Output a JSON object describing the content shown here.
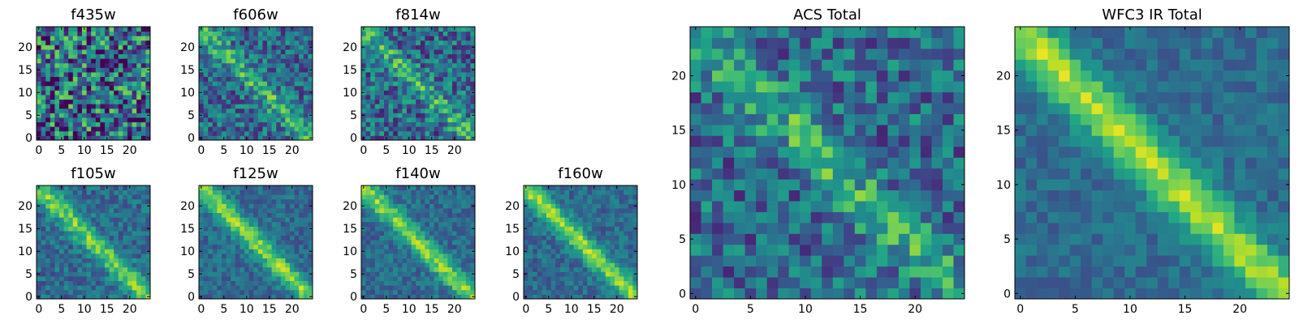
{
  "chart_data": [
    {
      "type": "heatmap",
      "title": "f435w",
      "size": 25,
      "diag_strength": 0.0,
      "noise": 1.0,
      "seed": 11,
      "xticks": [
        "0",
        "5",
        "10",
        "15",
        "20"
      ],
      "yticks": [
        "0",
        "5",
        "10",
        "15",
        "20"
      ],
      "colormap": "viridis"
    },
    {
      "type": "heatmap",
      "title": "f606w",
      "size": 25,
      "diag_strength": 0.55,
      "noise": 0.55,
      "seed": 23,
      "xticks": [
        "0",
        "5",
        "10",
        "15",
        "20"
      ],
      "yticks": [
        "0",
        "5",
        "10",
        "15",
        "20"
      ],
      "colormap": "viridis"
    },
    {
      "type": "heatmap",
      "title": "f814w",
      "size": 25,
      "diag_strength": 0.5,
      "noise": 0.6,
      "seed": 37,
      "xticks": [
        "0",
        "5",
        "10",
        "15",
        "20"
      ],
      "yticks": [
        "0",
        "5",
        "10",
        "15",
        "20"
      ],
      "colormap": "viridis"
    },
    {
      "type": "heatmap",
      "title": "f105w",
      "size": 25,
      "diag_strength": 0.8,
      "noise": 0.35,
      "seed": 41,
      "xticks": [
        "0",
        "5",
        "10",
        "15",
        "20"
      ],
      "yticks": [
        "0",
        "5",
        "10",
        "15",
        "20"
      ],
      "colormap": "viridis"
    },
    {
      "type": "heatmap",
      "title": "f125w",
      "size": 25,
      "diag_strength": 0.85,
      "noise": 0.3,
      "seed": 53,
      "xticks": [
        "0",
        "5",
        "10",
        "15",
        "20"
      ],
      "yticks": [
        "0",
        "5",
        "10",
        "15",
        "20"
      ],
      "colormap": "viridis"
    },
    {
      "type": "heatmap",
      "title": "f140w",
      "size": 25,
      "diag_strength": 0.85,
      "noise": 0.3,
      "seed": 67,
      "xticks": [
        "0",
        "5",
        "10",
        "15",
        "20"
      ],
      "yticks": [
        "0",
        "5",
        "10",
        "15",
        "20"
      ],
      "colormap": "viridis"
    },
    {
      "type": "heatmap",
      "title": "f160w",
      "size": 25,
      "diag_strength": 0.9,
      "noise": 0.3,
      "seed": 79,
      "xticks": [
        "0",
        "5",
        "10",
        "15",
        "20"
      ],
      "yticks": [
        "0",
        "5",
        "10",
        "15",
        "20"
      ],
      "colormap": "viridis"
    },
    {
      "type": "heatmap",
      "title": "ACS Total",
      "size": 25,
      "diag_strength": 0.5,
      "noise": 0.55,
      "seed": 89,
      "xticks": [
        "0",
        "5",
        "10",
        "15",
        "20"
      ],
      "yticks": [
        "0",
        "5",
        "10",
        "15",
        "20"
      ],
      "colormap": "viridis"
    },
    {
      "type": "heatmap",
      "title": "WFC3 IR Total",
      "size": 25,
      "diag_strength": 0.95,
      "noise": 0.22,
      "seed": 97,
      "xticks": [
        "0",
        "5",
        "10",
        "15",
        "20"
      ],
      "yticks": [
        "0",
        "5",
        "10",
        "15",
        "20"
      ],
      "colormap": "viridis"
    }
  ]
}
